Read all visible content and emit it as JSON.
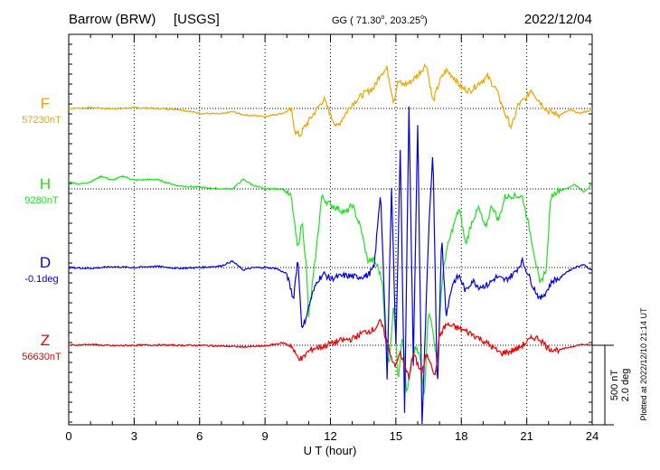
{
  "header": {
    "station": "Barrow (BRW)",
    "agency": "[USGS]",
    "coords_prefix": "GG ( 71.30",
    "coords_mid": ", 203.25",
    "coords_suffix": ")",
    "date": "2022/12/04",
    "degree_mark": "o"
  },
  "side_note": "Plotted at 2022/12/10 21:14 UT",
  "scale": {
    "field": "500 nT",
    "angle": "2.0 deg"
  },
  "chart_data": {
    "type": "line",
    "xlabel": "U T (hour)",
    "xlim": [
      0,
      24
    ],
    "x_ticks": [
      0,
      3,
      6,
      9,
      12,
      15,
      18,
      21,
      24
    ],
    "x_tick_labels": [
      "0",
      "3",
      "6",
      "9",
      "12",
      "15",
      "18",
      "21",
      "24"
    ],
    "grid": true,
    "scale_bar_nT": 500,
    "series": [
      {
        "name": "F",
        "baseline_label": "57230nT",
        "color": "#f0a500",
        "points": [
          [
            0,
            0
          ],
          [
            1,
            5
          ],
          [
            2,
            -2
          ],
          [
            3,
            5
          ],
          [
            4,
            0
          ],
          [
            5,
            -5
          ],
          [
            6,
            -30
          ],
          [
            7,
            -35
          ],
          [
            7.5,
            -20
          ],
          [
            8,
            -40
          ],
          [
            9,
            -50
          ],
          [
            9.8,
            -30
          ],
          [
            10.2,
            -10
          ],
          [
            10.4,
            -150
          ],
          [
            10.6,
            -170
          ],
          [
            10.8,
            -120
          ],
          [
            11,
            -80
          ],
          [
            11.3,
            -20
          ],
          [
            11.7,
            60
          ],
          [
            12,
            -40
          ],
          [
            12.3,
            -120
          ],
          [
            12.6,
            -50
          ],
          [
            13,
            30
          ],
          [
            13.5,
            90
          ],
          [
            14,
            130
          ],
          [
            14.3,
            220
          ],
          [
            14.6,
            250
          ],
          [
            14.9,
            40
          ],
          [
            15.1,
            170
          ],
          [
            15.3,
            150
          ],
          [
            15.6,
            160
          ],
          [
            16,
            210
          ],
          [
            16.4,
            280
          ],
          [
            16.7,
            40
          ],
          [
            17,
            170
          ],
          [
            17.3,
            240
          ],
          [
            17.7,
            190
          ],
          [
            18,
            130
          ],
          [
            18.4,
            110
          ],
          [
            18.8,
            160
          ],
          [
            19.2,
            200
          ],
          [
            19.6,
            120
          ],
          [
            20,
            -30
          ],
          [
            20.3,
            -120
          ],
          [
            20.6,
            20
          ],
          [
            21,
            70
          ],
          [
            21.2,
            120
          ],
          [
            21.5,
            60
          ],
          [
            22,
            -20
          ],
          [
            22.5,
            -40
          ],
          [
            23,
            -10
          ],
          [
            23.4,
            -30
          ],
          [
            24,
            -10
          ]
        ]
      },
      {
        "name": "H",
        "baseline_label": "9280nT",
        "color": "#22e022",
        "points": [
          [
            0,
            45
          ],
          [
            0.5,
            30
          ],
          [
            1,
            45
          ],
          [
            1.5,
            80
          ],
          [
            2,
            55
          ],
          [
            2.5,
            80
          ],
          [
            3,
            55
          ],
          [
            4,
            60
          ],
          [
            5,
            20
          ],
          [
            6,
            10
          ],
          [
            7,
            0
          ],
          [
            7.5,
            0
          ],
          [
            8,
            60
          ],
          [
            8.5,
            20
          ],
          [
            9,
            0
          ],
          [
            9.8,
            0
          ],
          [
            10.2,
            -50
          ],
          [
            10.5,
            -380
          ],
          [
            10.7,
            -200
          ],
          [
            10.9,
            -500
          ],
          [
            11,
            -800
          ],
          [
            11.3,
            -450
          ],
          [
            11.6,
            -50
          ],
          [
            12,
            -100
          ],
          [
            12.3,
            -120
          ],
          [
            12.7,
            -150
          ],
          [
            13,
            -100
          ],
          [
            13.4,
            -250
          ],
          [
            13.7,
            -450
          ],
          [
            14,
            -450
          ],
          [
            14.2,
            -500
          ],
          [
            14.4,
            -600
          ],
          [
            14.5,
            -900
          ],
          [
            14.7,
            -1100
          ],
          [
            14.9,
            -700
          ],
          [
            15.1,
            -1200
          ],
          [
            15.3,
            -900
          ],
          [
            15.5,
            -1300
          ],
          [
            15.7,
            -1100
          ],
          [
            15.9,
            -1000
          ],
          [
            16.1,
            -1050
          ],
          [
            16.3,
            -1300
          ],
          [
            16.5,
            -750
          ],
          [
            16.7,
            -900
          ],
          [
            16.9,
            -1100
          ],
          [
            17.1,
            -600
          ],
          [
            17.3,
            -400
          ],
          [
            17.6,
            -250
          ],
          [
            17.9,
            -120
          ],
          [
            18.2,
            -350
          ],
          [
            18.5,
            -200
          ],
          [
            18.8,
            -120
          ],
          [
            19.1,
            -250
          ],
          [
            19.4,
            -100
          ],
          [
            19.7,
            -200
          ],
          [
            20,
            -50
          ],
          [
            20.4,
            -40
          ],
          [
            20.8,
            -50
          ],
          [
            21.2,
            -300
          ],
          [
            21.6,
            -600
          ],
          [
            21.9,
            -500
          ],
          [
            22.1,
            -50
          ],
          [
            22.4,
            -10
          ],
          [
            22.8,
            0
          ],
          [
            23.2,
            30
          ],
          [
            23.6,
            -20
          ],
          [
            24,
            30
          ]
        ]
      },
      {
        "name": "D",
        "baseline_label": "-0.1deg",
        "color": "#0000ee",
        "points": [
          [
            0,
            0
          ],
          [
            1,
            -5
          ],
          [
            2,
            5
          ],
          [
            3,
            0
          ],
          [
            4,
            8
          ],
          [
            5,
            -5
          ],
          [
            6,
            0
          ],
          [
            7,
            10
          ],
          [
            7.5,
            40
          ],
          [
            8,
            -15
          ],
          [
            8.5,
            0
          ],
          [
            9,
            0
          ],
          [
            9.5,
            -5
          ],
          [
            10,
            -40
          ],
          [
            10.3,
            -200
          ],
          [
            10.5,
            60
          ],
          [
            10.7,
            -400
          ],
          [
            10.9,
            -300
          ],
          [
            11.1,
            -200
          ],
          [
            11.4,
            -80
          ],
          [
            11.7,
            -40
          ],
          [
            12,
            -70
          ],
          [
            12.3,
            -60
          ],
          [
            12.7,
            -50
          ],
          [
            13.2,
            -60
          ],
          [
            13.7,
            -50
          ],
          [
            14,
            0
          ],
          [
            14.3,
            480
          ],
          [
            14.6,
            -700
          ],
          [
            14.8,
            520
          ],
          [
            15,
            -500
          ],
          [
            15.2,
            750
          ],
          [
            15.4,
            -900
          ],
          [
            15.6,
            1000
          ],
          [
            15.8,
            -600
          ],
          [
            16,
            900
          ],
          [
            16.2,
            -1000
          ],
          [
            16.5,
            200
          ],
          [
            16.7,
            750
          ],
          [
            16.9,
            -800
          ],
          [
            17.1,
            200
          ],
          [
            17.3,
            -300
          ],
          [
            17.6,
            -100
          ],
          [
            17.9,
            -50
          ],
          [
            18.2,
            -150
          ],
          [
            18.5,
            -80
          ],
          [
            18.8,
            -120
          ],
          [
            19.2,
            -110
          ],
          [
            19.6,
            -60
          ],
          [
            20,
            -80
          ],
          [
            20.4,
            -40
          ],
          [
            20.8,
            40
          ],
          [
            21,
            -20
          ],
          [
            21.3,
            -120
          ],
          [
            21.6,
            -200
          ],
          [
            21.9,
            -150
          ],
          [
            22.2,
            -80
          ],
          [
            22.5,
            -70
          ],
          [
            22.8,
            -30
          ],
          [
            23.2,
            0
          ],
          [
            23.6,
            20
          ],
          [
            24,
            -20
          ]
        ]
      },
      {
        "name": "Z",
        "baseline_label": "56630nT",
        "color": "#ee0000",
        "points": [
          [
            0,
            0
          ],
          [
            1,
            5
          ],
          [
            2,
            -3
          ],
          [
            3,
            0
          ],
          [
            4,
            2
          ],
          [
            5,
            0
          ],
          [
            6,
            0
          ],
          [
            7,
            -5
          ],
          [
            8,
            -10
          ],
          [
            9,
            -5
          ],
          [
            9.8,
            15
          ],
          [
            10.2,
            0
          ],
          [
            10.4,
            -60
          ],
          [
            10.7,
            -90
          ],
          [
            10.9,
            -50
          ],
          [
            11.2,
            -20
          ],
          [
            11.6,
            -10
          ],
          [
            12,
            10
          ],
          [
            12.5,
            30
          ],
          [
            13,
            40
          ],
          [
            13.5,
            80
          ],
          [
            14,
            100
          ],
          [
            14.3,
            150
          ],
          [
            14.6,
            20
          ],
          [
            14.8,
            -80
          ],
          [
            15,
            -130
          ],
          [
            15.2,
            -40
          ],
          [
            15.4,
            -140
          ],
          [
            15.6,
            -200
          ],
          [
            15.8,
            -50
          ],
          [
            16,
            -120
          ],
          [
            16.2,
            -170
          ],
          [
            16.4,
            -60
          ],
          [
            16.6,
            -100
          ],
          [
            16.8,
            -200
          ],
          [
            17,
            60
          ],
          [
            17.3,
            130
          ],
          [
            17.6,
            120
          ],
          [
            18,
            100
          ],
          [
            18.5,
            70
          ],
          [
            19,
            30
          ],
          [
            19.4,
            -10
          ],
          [
            19.8,
            -50
          ],
          [
            20.2,
            -40
          ],
          [
            20.6,
            -20
          ],
          [
            21,
            20
          ],
          [
            21.3,
            50
          ],
          [
            21.6,
            40
          ],
          [
            22,
            -20
          ],
          [
            22.5,
            -30
          ],
          [
            23,
            -10
          ],
          [
            23.5,
            5
          ],
          [
            24,
            0
          ]
        ]
      }
    ]
  }
}
